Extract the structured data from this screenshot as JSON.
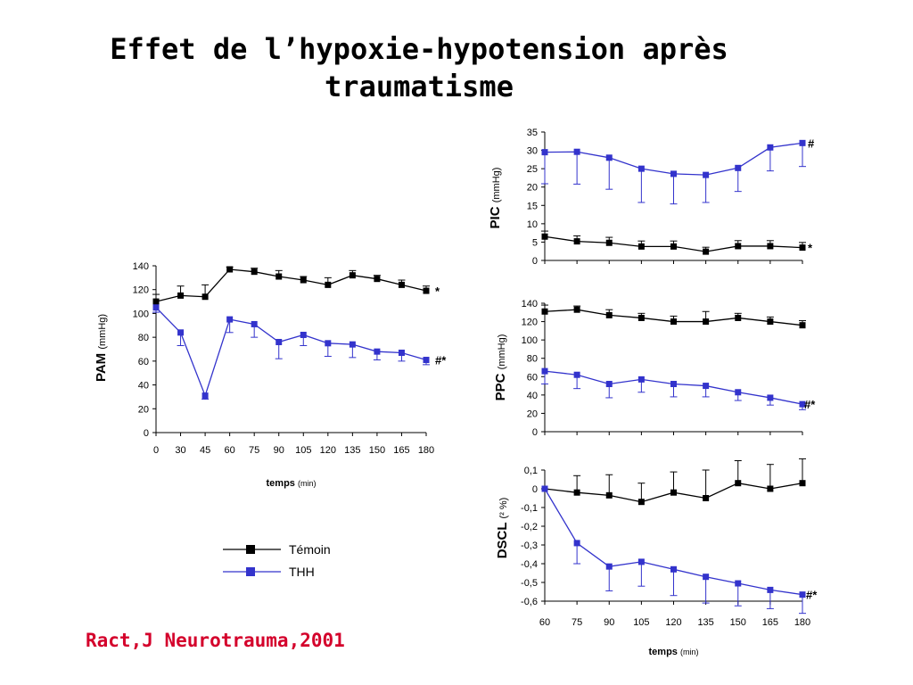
{
  "title": {
    "line1": "Effet de l’hypoxie-hypotension après",
    "line2": "traumatisme"
  },
  "citation": "Ract,J Neurotrauma,2001",
  "legend": [
    {
      "label": "Témoin",
      "color": "#000000"
    },
    {
      "label": "THH",
      "color": "#3333cc"
    }
  ],
  "chart_data": [
    {
      "id": "pam",
      "type": "line",
      "ylabel": "PAM",
      "yunit": "(mmHg)",
      "xlabel": "temps",
      "xunit": "(min)",
      "ylim": [
        0,
        140
      ],
      "yticks": [
        "0",
        "20",
        "40",
        "60",
        "80",
        "100",
        "120",
        "140"
      ],
      "x": [
        0,
        30,
        45,
        60,
        75,
        90,
        105,
        120,
        135,
        150,
        165,
        180
      ],
      "xticks": [
        "0",
        "30",
        "45",
        "60",
        "75",
        "90",
        "105",
        "120",
        "135",
        "150",
        "165",
        "180"
      ],
      "series": [
        {
          "name": "Témoin",
          "color": "#000000",
          "values": [
            110,
            115,
            114,
            137,
            135,
            131,
            128,
            124,
            132,
            129,
            124,
            119
          ],
          "errors": [
            6,
            8,
            10,
            2,
            3,
            5,
            3,
            6,
            4,
            3,
            4,
            4
          ],
          "annotation": "*"
        },
        {
          "name": "THH",
          "color": "#3333cc",
          "values": [
            105,
            84,
            31,
            95,
            91,
            76,
            82,
            75,
            74,
            68,
            67,
            61
          ],
          "errors": [
            4,
            11,
            3,
            11,
            11,
            14,
            9,
            11,
            11,
            7,
            7,
            4
          ],
          "annotation": "#*"
        }
      ]
    },
    {
      "id": "pic",
      "type": "line",
      "ylabel": "PIC",
      "yunit": "(mmHg)",
      "ylim": [
        0,
        35
      ],
      "yticks": [
        "0",
        "5",
        "10",
        "15",
        "20",
        "25",
        "30",
        "35"
      ],
      "x": [
        60,
        75,
        90,
        105,
        120,
        135,
        150,
        165,
        180
      ],
      "xticks": [],
      "series": [
        {
          "name": "Témoin",
          "color": "#000000",
          "values": [
            6.5,
            5.2,
            4.8,
            3.8,
            3.8,
            2.4,
            3.9,
            3.9,
            3.5
          ],
          "errors": [
            1.5,
            1.5,
            1.5,
            1.5,
            1.5,
            1.2,
            1.5,
            1.5,
            1.4
          ],
          "annotation": "*"
        },
        {
          "name": "THH",
          "color": "#3333cc",
          "values": [
            29.5,
            29.6,
            28,
            25,
            23.6,
            23.3,
            25.2,
            30.8,
            32
          ],
          "errors": [
            8.6,
            8.8,
            8.6,
            9.2,
            8.2,
            7.5,
            6.4,
            6.4,
            6.4
          ],
          "annotation": "#"
        }
      ]
    },
    {
      "id": "ppc",
      "type": "line",
      "ylabel": "PPC",
      "yunit": "(mmHg)",
      "ylim": [
        0,
        140
      ],
      "yticks": [
        "0",
        "20",
        "40",
        "60",
        "80",
        "100",
        "120",
        "140"
      ],
      "x": [
        60,
        75,
        90,
        105,
        120,
        135,
        150,
        165,
        180
      ],
      "xticks": [],
      "series": [
        {
          "name": "Témoin",
          "color": "#000000",
          "values": [
            131,
            133,
            127,
            124,
            120,
            120,
            124,
            120,
            116
          ],
          "errors": [
            7,
            4,
            6,
            5,
            6,
            11,
            5,
            5,
            5
          ],
          "annotation": ""
        },
        {
          "name": "THH",
          "color": "#3333cc",
          "values": [
            66,
            62,
            52,
            57,
            52,
            50,
            43,
            37,
            30
          ],
          "errors": [
            14,
            15,
            15,
            14,
            14,
            12,
            9,
            8,
            6
          ],
          "annotation": "#*"
        }
      ]
    },
    {
      "id": "dscl",
      "type": "line",
      "ylabel": "DSCL",
      "yunit": "(² %)",
      "xlabel": "temps",
      "xunit": "(min)",
      "ylim": [
        -0.6,
        0.1
      ],
      "yticks": [
        "-0,6",
        "-0,5",
        "-0,4",
        "-0,3",
        "-0,2",
        "-0,1",
        "0",
        "0,1"
      ],
      "x": [
        60,
        75,
        90,
        105,
        120,
        135,
        150,
        165,
        180
      ],
      "xticks": [
        "60",
        "75",
        "90",
        "105",
        "120",
        "135",
        "150",
        "165",
        "180"
      ],
      "series": [
        {
          "name": "Témoin",
          "color": "#000000",
          "values": [
            0,
            -0.02,
            -0.035,
            -0.07,
            -0.02,
            -0.05,
            0.03,
            0,
            0.03
          ],
          "errors": [
            0,
            0.09,
            0.11,
            0.1,
            0.11,
            0.15,
            0.12,
            0.13,
            0.13
          ],
          "annotation": ""
        },
        {
          "name": "THH",
          "color": "#3333cc",
          "values": [
            0,
            -0.29,
            -0.415,
            -0.39,
            -0.43,
            -0.47,
            -0.505,
            -0.54,
            -0.565
          ],
          "errors": [
            0,
            0.11,
            0.13,
            0.13,
            0.14,
            0.14,
            0.12,
            0.1,
            0.1
          ],
          "annotation": "#*"
        }
      ]
    }
  ]
}
